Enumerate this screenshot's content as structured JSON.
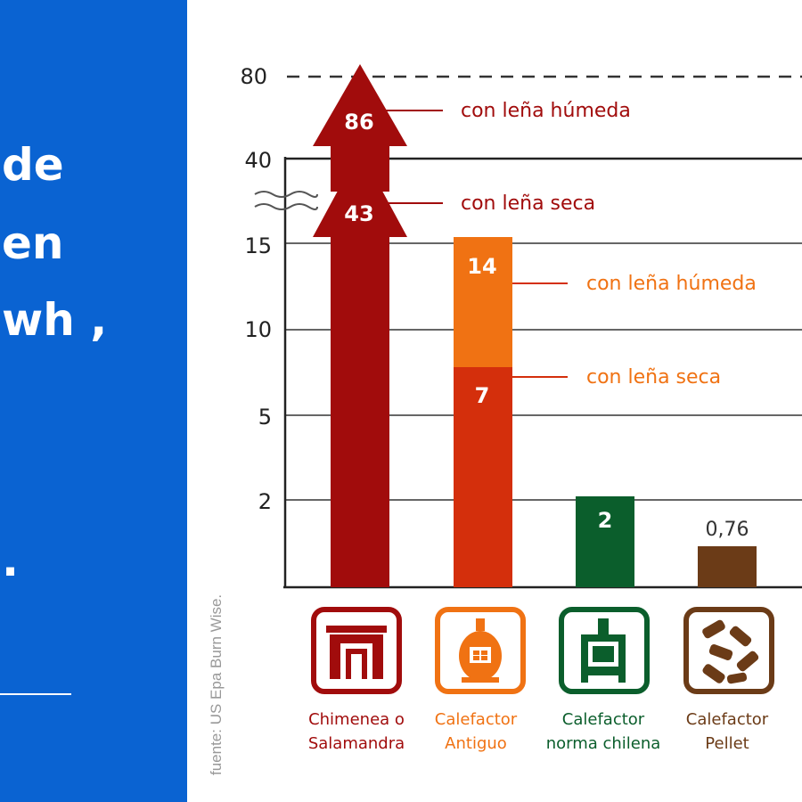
{
  "left_panel": {
    "lines": [
      "de",
      "en",
      "wh ,",
      "."
    ]
  },
  "chart_data": {
    "type": "bar",
    "source": "fuente: US Epa Burn Wise.",
    "y_ticks": [
      "2",
      "5",
      "10",
      "15",
      "40",
      "80"
    ],
    "y_break": true,
    "series": [
      {
        "name": "con leña seca",
        "values": [
          43,
          7,
          2,
          0.76
        ]
      },
      {
        "name": "con leña húmeda",
        "values": [
          86,
          14,
          null,
          null
        ]
      }
    ],
    "categories": [
      {
        "line1": "Chimenea o",
        "line2": "Salamandra",
        "color": "#a10c0c",
        "icon": "fireplace-icon"
      },
      {
        "line1": "Calefactor",
        "line2": "Antiguo",
        "color": "#f07213",
        "icon": "old-stove-icon"
      },
      {
        "line1": "Calefactor",
        "line2": "norma chilena",
        "color": "#0b5e2c",
        "icon": "certified-stove-icon"
      },
      {
        "line1": "Calefactor",
        "line2": "Pellet",
        "color": "#6b3b17",
        "icon": "pellet-icon"
      }
    ],
    "value_labels": [
      "86",
      "43",
      "14",
      "7",
      "2",
      "0,76"
    ],
    "annotations": [
      {
        "text": "con leña húmeda",
        "color": "#a10c0c"
      },
      {
        "text": "con leña seca",
        "color": "#a10c0c"
      },
      {
        "text": "con leña húmeda",
        "color": "#f07213"
      },
      {
        "text": "con leña seca",
        "color": "#f07213"
      }
    ],
    "colors": {
      "dry_old_stove": "#d42f0c",
      "axis": "#333333",
      "grid": "#555555"
    }
  }
}
